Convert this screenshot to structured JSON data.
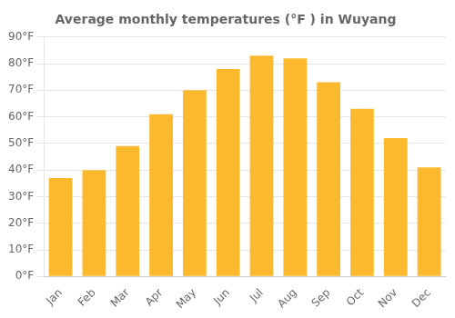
{
  "chart_data": {
    "type": "bar",
    "title": "Average monthly temperatures (°F ) in Wuyang",
    "categories": [
      "Jan",
      "Feb",
      "Mar",
      "Apr",
      "May",
      "Jun",
      "Jul",
      "Aug",
      "Sep",
      "Oct",
      "Nov",
      "Dec"
    ],
    "values": [
      37,
      40,
      49,
      61,
      70,
      78,
      83,
      82,
      73,
      63,
      52,
      41
    ],
    "color": "#FDB92E",
    "ylim": [
      0,
      90
    ],
    "yticks": [
      {
        "value": 0,
        "label": "0°F"
      },
      {
        "value": 10,
        "label": "10°F"
      },
      {
        "value": 20,
        "label": "20°F"
      },
      {
        "value": 30,
        "label": "30°F"
      },
      {
        "value": 40,
        "label": "40°F"
      },
      {
        "value": 50,
        "label": "50°F"
      },
      {
        "value": 60,
        "label": "60°F"
      },
      {
        "value": 70,
        "label": "70°F"
      },
      {
        "value": 80,
        "label": "80°F"
      },
      {
        "value": 90,
        "label": "90°F"
      }
    ],
    "grid": true
  }
}
